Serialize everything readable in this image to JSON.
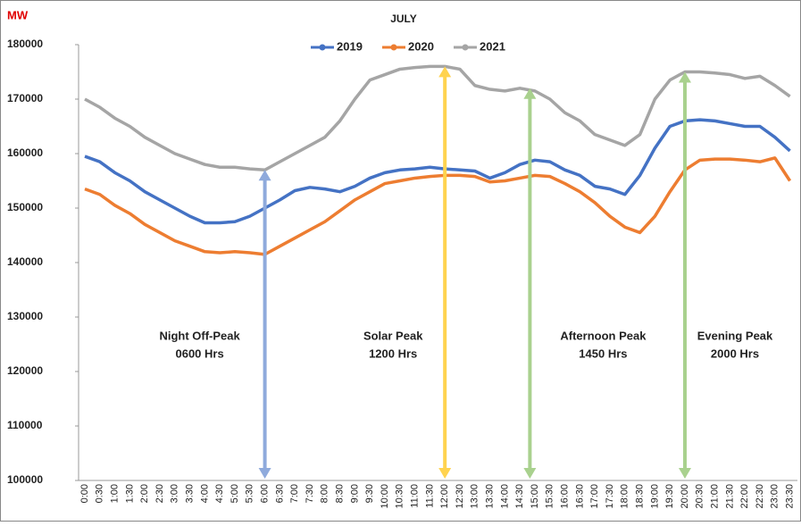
{
  "chart_data": {
    "type": "line",
    "title": "JULY",
    "y_label": "MW",
    "categories": [
      "0:00",
      "0:30",
      "1:00",
      "1:30",
      "2:00",
      "2:30",
      "3:00",
      "3:30",
      "4:00",
      "4:30",
      "5:00",
      "5:30",
      "6:00",
      "6:30",
      "7:00",
      "7:30",
      "8:00",
      "8:30",
      "9:00",
      "9:30",
      "10:00",
      "10:30",
      "11:00",
      "11:30",
      "12:00",
      "12:30",
      "13:00",
      "13:30",
      "14:00",
      "14:30",
      "15:00",
      "15:30",
      "16:00",
      "16:30",
      "17:00",
      "17:30",
      "18:00",
      "18:30",
      "19:00",
      "19:30",
      "20:00",
      "20:30",
      "21:00",
      "21:30",
      "22:00",
      "22:30",
      "23:00",
      "23:30"
    ],
    "series": [
      {
        "name": "2019",
        "color": "#4472c4",
        "values": [
          159500,
          158500,
          156500,
          155000,
          153000,
          151500,
          150000,
          148500,
          147300,
          147300,
          147500,
          148500,
          150000,
          151500,
          153200,
          153800,
          153500,
          153000,
          154000,
          155500,
          156500,
          157000,
          157200,
          157500,
          157200,
          157000,
          156800,
          155500,
          156500,
          158000,
          158800,
          158500,
          157000,
          156000,
          154000,
          153500,
          152500,
          156000,
          161000,
          165000,
          166000,
          166200,
          166000,
          165500,
          165000,
          165000,
          163000,
          160500
        ]
      },
      {
        "name": "2020",
        "color": "#ed7d31",
        "values": [
          153500,
          152500,
          150500,
          149000,
          147000,
          145500,
          144000,
          143000,
          142000,
          141800,
          142000,
          141800,
          141500,
          143000,
          144500,
          146000,
          147500,
          149500,
          151500,
          153000,
          154500,
          155000,
          155500,
          155800,
          156000,
          156000,
          155800,
          154800,
          155000,
          155500,
          156000,
          155800,
          154500,
          153000,
          151000,
          148500,
          146500,
          145500,
          148500,
          153000,
          157000,
          158800,
          159000,
          159000,
          158800,
          158500,
          159200,
          155000
        ]
      },
      {
        "name": "2021",
        "color": "#a5a5a5",
        "values": [
          170000,
          168500,
          166500,
          165000,
          163000,
          161500,
          160000,
          159000,
          158000,
          157500,
          157500,
          157200,
          157000,
          158500,
          160000,
          161500,
          163000,
          166000,
          170000,
          173500,
          174500,
          175500,
          175800,
          176000,
          176000,
          175500,
          172500,
          171800,
          171500,
          172000,
          171500,
          170000,
          167500,
          166000,
          163500,
          162500,
          161500,
          163500,
          170000,
          173500,
          175000,
          175000,
          174800,
          174500,
          173800,
          174200,
          172500,
          170500
        ]
      }
    ],
    "ylim": [
      100000,
      180000
    ],
    "yticks": [
      100000,
      110000,
      120000,
      130000,
      140000,
      150000,
      160000,
      170000,
      180000
    ],
    "grid": false,
    "annotations": [
      {
        "text": [
          "Night Off-Peak",
          "0600 Hrs"
        ],
        "x": "6:00",
        "y": 157000,
        "color": "#8faadc"
      },
      {
        "text": [
          "Solar Peak",
          "1200 Hrs"
        ],
        "x": "12:00",
        "y": 176000,
        "color": "#ffd34f"
      },
      {
        "text": [
          "Afternoon Peak",
          "1450 Hrs"
        ],
        "x": "14:50",
        "y": 172000,
        "color": "#a9d18e"
      },
      {
        "text": [
          "Evening Peak",
          "2000 Hrs"
        ],
        "x": "20:00",
        "y": 175000,
        "color": "#a9d18e"
      }
    ]
  }
}
